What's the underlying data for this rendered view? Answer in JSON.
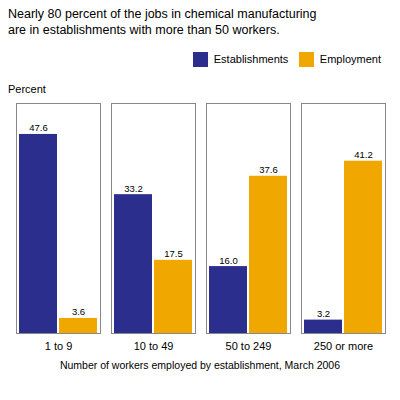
{
  "chart_data": {
    "type": "bar",
    "title": "Nearly 80 percent of the jobs in chemical manufacturing\nare in establishments with more than 50 workers.",
    "xlabel": "Number of workers employed by establishment, March 2006",
    "ylabel": "Percent",
    "categories": [
      "1 to 9",
      "10 to 49",
      "50 to 249",
      "250 or more"
    ],
    "series": [
      {
        "name": "Establishments",
        "color": "#2b2e8c",
        "values": [
          47.6,
          33.2,
          16.0,
          3.2
        ],
        "value_labels": [
          "47.6",
          "33.2",
          "16.0",
          "3.2"
        ]
      },
      {
        "name": "Employment",
        "color": "#f0a800",
        "values": [
          3.6,
          17.5,
          37.6,
          41.2
        ],
        "value_labels": [
          "3.6",
          "17.5",
          "37.6",
          "41.2"
        ]
      }
    ],
    "ylim": [
      0,
      55
    ],
    "grid": false,
    "legend": "upper right",
    "data_labels": true,
    "tick_labels": "x"
  }
}
